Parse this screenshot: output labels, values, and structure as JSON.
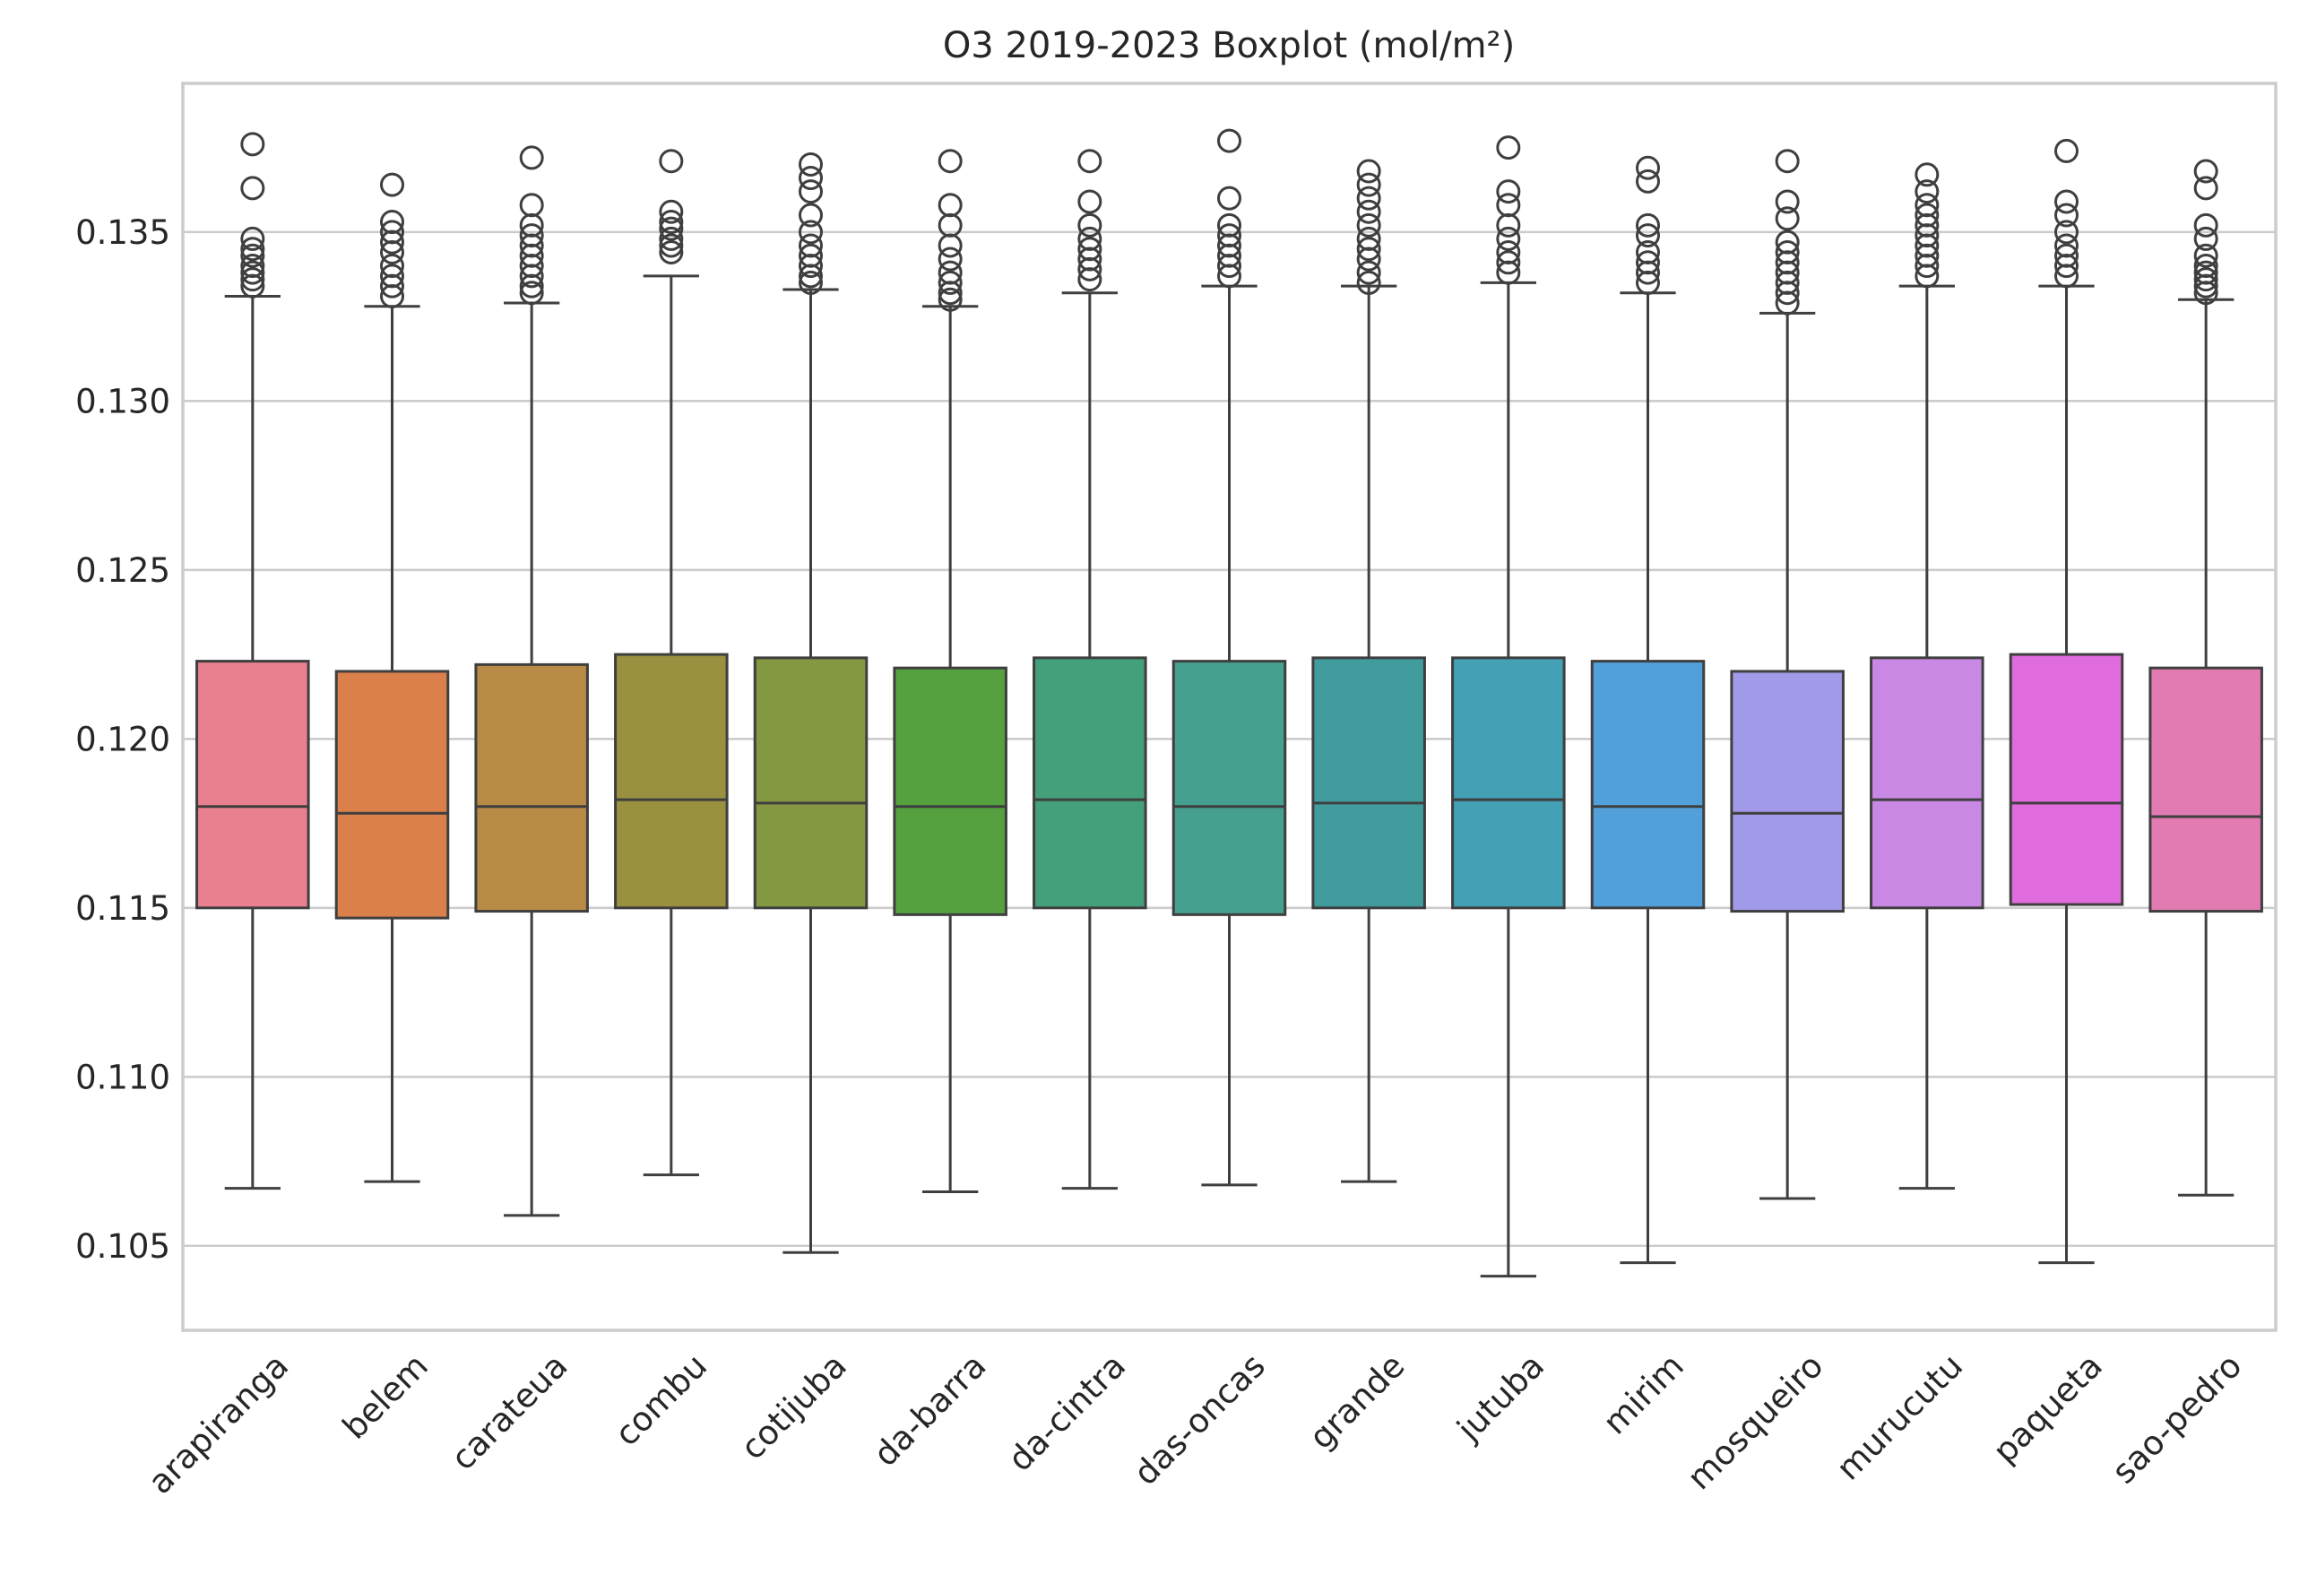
{
  "chart_data": {
    "type": "box",
    "title": "O3 2019-2023 Boxplot (mol/m²)",
    "xlabel": "",
    "ylabel": "",
    "ylim": [
      0.1025,
      0.1394
    ],
    "yticks": [
      0.105,
      0.11,
      0.115,
      0.12,
      0.125,
      0.13,
      0.135
    ],
    "ytick_labels": [
      "0.105",
      "0.110",
      "0.115",
      "0.120",
      "0.125",
      "0.130",
      "0.135"
    ],
    "grid": true,
    "categories": [
      "arapiranga",
      "belem",
      "carateua",
      "combu",
      "cotijuba",
      "da-barra",
      "da-cintra",
      "das-oncas",
      "grande",
      "jutuba",
      "mirim",
      "mosqueiro",
      "murucutu",
      "paqueta",
      "sao-pedro"
    ],
    "colors": [
      "#e8808f",
      "#dc804b",
      "#b78a46",
      "#9a9140",
      "#849842",
      "#55a140",
      "#43a07a",
      "#45a090",
      "#409c9d",
      "#43a0b5",
      "#52a0da",
      "#a09ae8",
      "#c988e4",
      "#e06bdc",
      "#e17bb1"
    ],
    "boxes": [
      {
        "min": 0.1067,
        "q1": 0.115,
        "median": 0.118,
        "q3": 0.1223,
        "max": 0.1331,
        "fliers": [
          0.1376,
          0.1363,
          0.1348,
          0.1345,
          0.1343,
          0.134,
          0.1338,
          0.1336,
          0.1334
        ]
      },
      {
        "min": 0.1069,
        "q1": 0.1147,
        "median": 0.1178,
        "q3": 0.122,
        "max": 0.1328,
        "fliers": [
          0.1364,
          0.1353,
          0.135,
          0.1347,
          0.1344,
          0.134,
          0.1337,
          0.1334,
          0.1331
        ]
      },
      {
        "min": 0.1059,
        "q1": 0.1149,
        "median": 0.118,
        "q3": 0.1222,
        "max": 0.1329,
        "fliers": [
          0.1372,
          0.1358,
          0.1352,
          0.1349,
          0.1346,
          0.1343,
          0.134,
          0.1337,
          0.1334,
          0.1332
        ]
      },
      {
        "min": 0.1071,
        "q1": 0.115,
        "median": 0.1182,
        "q3": 0.1225,
        "max": 0.1337,
        "fliers": [
          0.1371,
          0.1356,
          0.1353,
          0.1351,
          0.1348,
          0.1346,
          0.1344
        ]
      },
      {
        "min": 0.1048,
        "q1": 0.115,
        "median": 0.1181,
        "q3": 0.1224,
        "max": 0.1333,
        "fliers": [
          0.137,
          0.1366,
          0.1362,
          0.1355,
          0.135,
          0.1346,
          0.1343,
          0.134,
          0.1337,
          0.1335
        ]
      },
      {
        "min": 0.1066,
        "q1": 0.1148,
        "median": 0.118,
        "q3": 0.1221,
        "max": 0.1328,
        "fliers": [
          0.1371,
          0.1358,
          0.1352,
          0.1346,
          0.1342,
          0.1338,
          0.1335,
          0.1332,
          0.133
        ]
      },
      {
        "min": 0.1067,
        "q1": 0.115,
        "median": 0.1182,
        "q3": 0.1224,
        "max": 0.1332,
        "fliers": [
          0.1371,
          0.1359,
          0.1352,
          0.1348,
          0.1345,
          0.1342,
          0.1339,
          0.1336
        ]
      },
      {
        "min": 0.1068,
        "q1": 0.1148,
        "median": 0.118,
        "q3": 0.1223,
        "max": 0.1334,
        "fliers": [
          0.1377,
          0.136,
          0.1352,
          0.1349,
          0.1346,
          0.1343,
          0.134,
          0.1337
        ]
      },
      {
        "min": 0.1069,
        "q1": 0.115,
        "median": 0.1181,
        "q3": 0.1224,
        "max": 0.1334,
        "fliers": [
          0.1368,
          0.1364,
          0.136,
          0.1356,
          0.1352,
          0.1348,
          0.1345,
          0.1342,
          0.1338,
          0.1335
        ]
      },
      {
        "min": 0.1041,
        "q1": 0.115,
        "median": 0.1182,
        "q3": 0.1224,
        "max": 0.1335,
        "fliers": [
          0.1375,
          0.1362,
          0.1358,
          0.1352,
          0.1348,
          0.1344,
          0.1341,
          0.1338
        ]
      },
      {
        "min": 0.1045,
        "q1": 0.115,
        "median": 0.118,
        "q3": 0.1223,
        "max": 0.1332,
        "fliers": [
          0.1369,
          0.1365,
          0.1352,
          0.1349,
          0.1344,
          0.1341,
          0.1338,
          0.1335
        ]
      },
      {
        "min": 0.1064,
        "q1": 0.1149,
        "median": 0.1178,
        "q3": 0.122,
        "max": 0.1326,
        "fliers": [
          0.1371,
          0.1359,
          0.1354,
          0.1347,
          0.1344,
          0.1341,
          0.1338,
          0.1335,
          0.1332,
          0.1329
        ]
      },
      {
        "min": 0.1067,
        "q1": 0.115,
        "median": 0.1182,
        "q3": 0.1224,
        "max": 0.1334,
        "fliers": [
          0.1367,
          0.1362,
          0.1358,
          0.1355,
          0.1352,
          0.1349,
          0.1346,
          0.1343,
          0.134,
          0.1337
        ]
      },
      {
        "min": 0.1045,
        "q1": 0.1151,
        "median": 0.1181,
        "q3": 0.1225,
        "max": 0.1334,
        "fliers": [
          0.1374,
          0.1359,
          0.1355,
          0.135,
          0.1346,
          0.1343,
          0.134,
          0.1337
        ]
      },
      {
        "min": 0.1065,
        "q1": 0.1149,
        "median": 0.1177,
        "q3": 0.1221,
        "max": 0.133,
        "fliers": [
          0.1368,
          0.1363,
          0.1352,
          0.1348,
          0.1343,
          0.134,
          0.1338,
          0.1336,
          0.1334,
          0.1332
        ]
      }
    ]
  }
}
